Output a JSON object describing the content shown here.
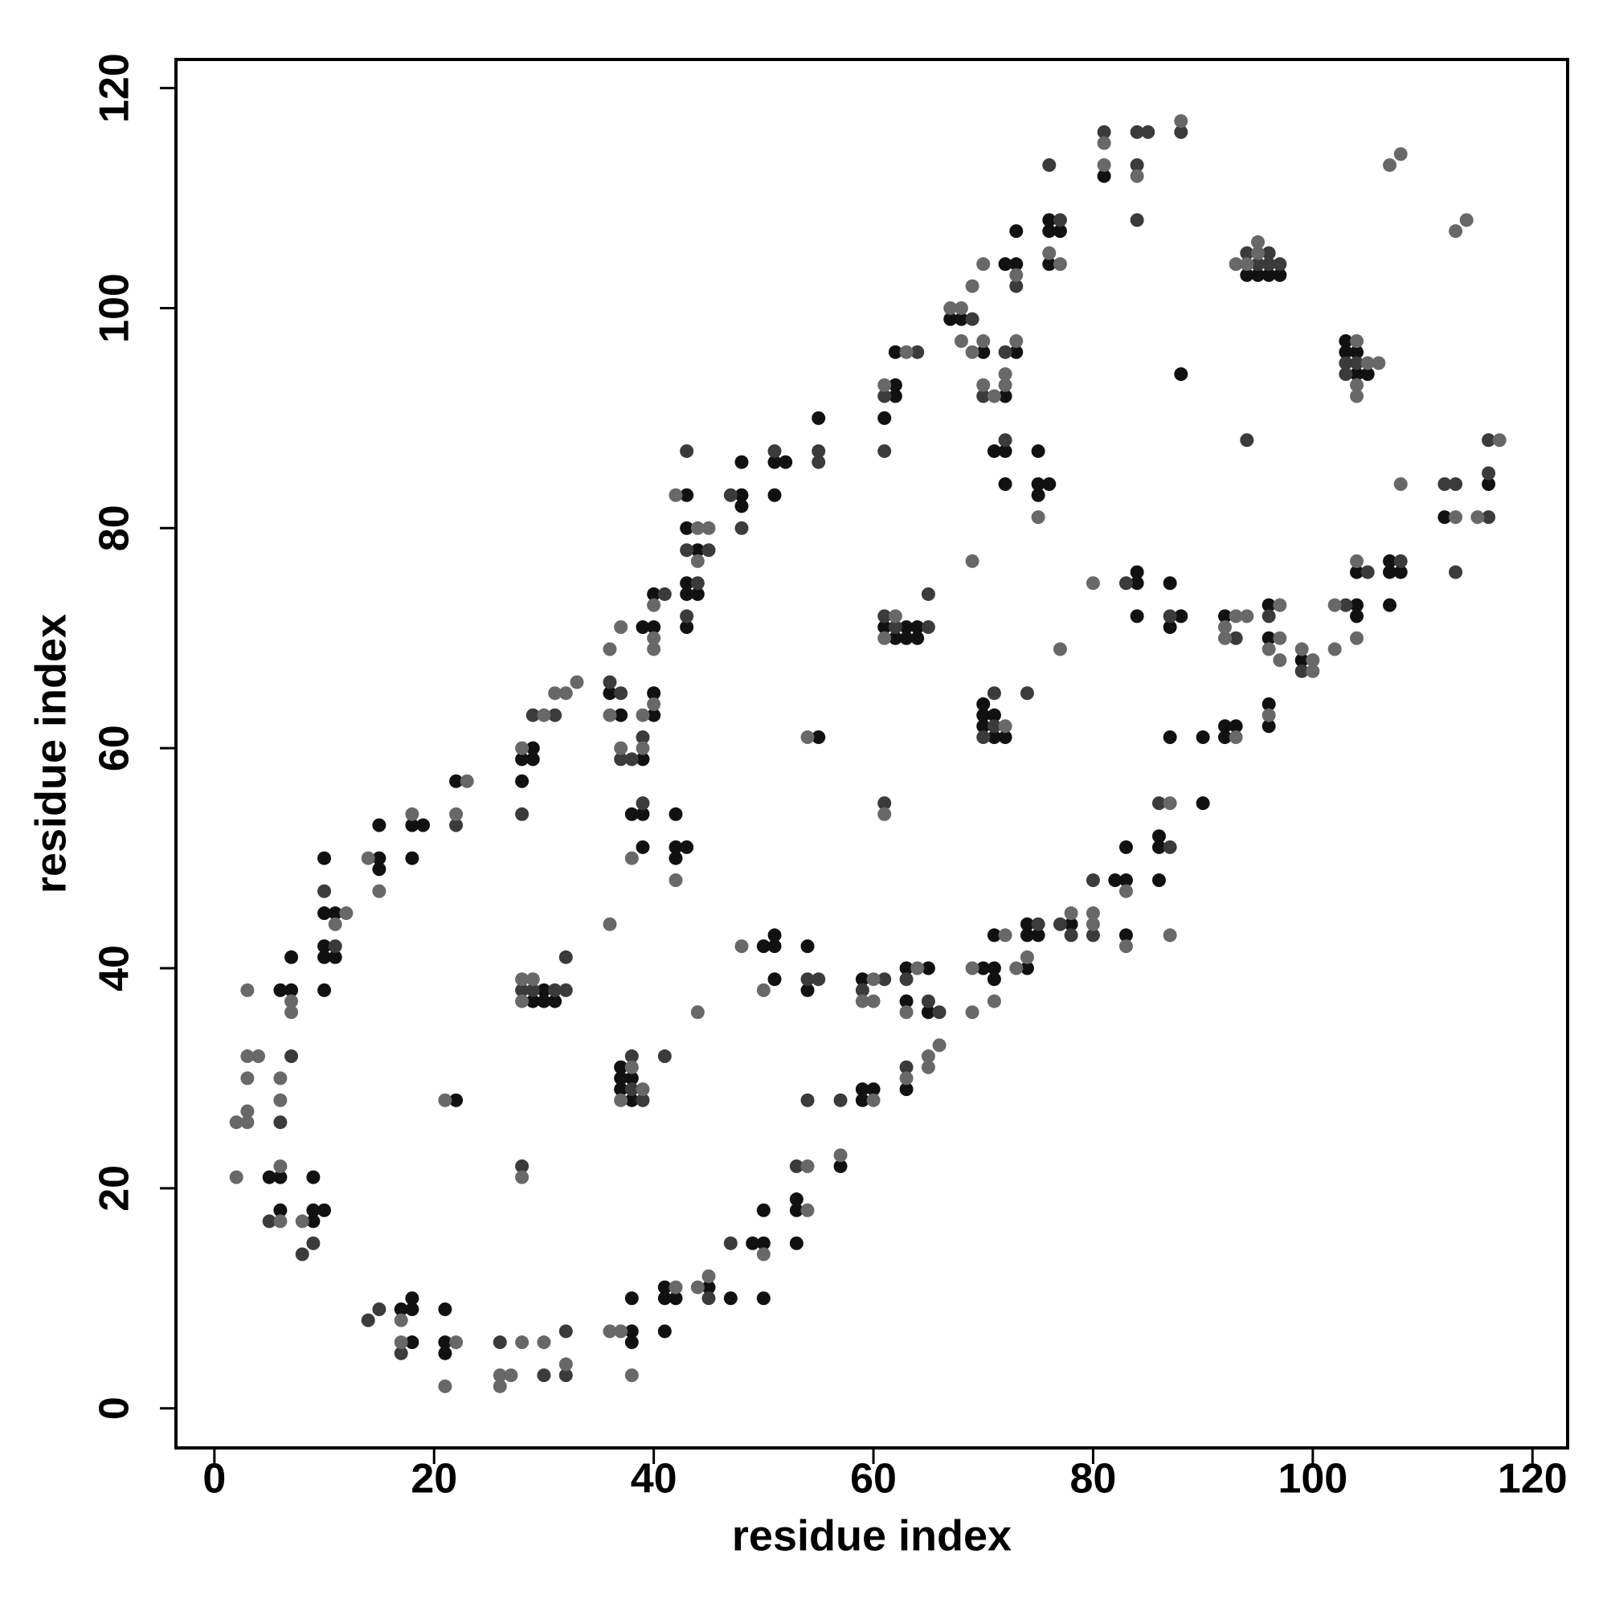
{
  "chart_data": {
    "type": "scatter",
    "xlabel": "residue index",
    "ylabel": "residue index",
    "xlim": [
      -3.5,
      123.2
    ],
    "ylim": [
      -3.6,
      122.6
    ],
    "xticks": [
      0,
      20,
      40,
      60,
      80,
      100,
      120
    ],
    "yticks": [
      0,
      20,
      40,
      60,
      80,
      100,
      120
    ],
    "series": [
      {
        "color": "#111111",
        "x": [
          5,
          6,
          6,
          6,
          7,
          7,
          9,
          9,
          10,
          9,
          10,
          10,
          10,
          11,
          10,
          11,
          10,
          15,
          15,
          15,
          18,
          18,
          19,
          22,
          28,
          28,
          29,
          29,
          36,
          37,
          39,
          40,
          40,
          38,
          39,
          39,
          39,
          40,
          40,
          42,
          42,
          43,
          42,
          43,
          43,
          44,
          43,
          43,
          44,
          43,
          48,
          48,
          48,
          51,
          52,
          51,
          55,
          61,
          62,
          62,
          62,
          67,
          68,
          70,
          72,
          73,
          72,
          73,
          73,
          76,
          76,
          76,
          77,
          81,
          94,
          95,
          96,
          97,
          103,
          103,
          104,
          104,
          105,
          88,
          71,
          72,
          72,
          75,
          75,
          76,
          75,
          61,
          62,
          63,
          63,
          64,
          64,
          70,
          70,
          70,
          71,
          71,
          72,
          55,
          22,
          29,
          30,
          30,
          31,
          37,
          37,
          37,
          38,
          38,
          50,
          51,
          51,
          51,
          54,
          54,
          59,
          63,
          63,
          65,
          65,
          70,
          71,
          71,
          71,
          74,
          74,
          74,
          75,
          78,
          82,
          83,
          83,
          83,
          86,
          86,
          86,
          87,
          90,
          90,
          92,
          92,
          93,
          84,
          84,
          84,
          87,
          87,
          88,
          92,
          96,
          96,
          96,
          96,
          99,
          104,
          104,
          104,
          107,
          107,
          108,
          107,
          112,
          116,
          17,
          18,
          18,
          18,
          21,
          21,
          21,
          38,
          38,
          38,
          41,
          41,
          41,
          42,
          45,
          47,
          49,
          50,
          50,
          50,
          53,
          53,
          53,
          57,
          59,
          59,
          60,
          63
        ],
        "y": [
          21,
          21,
          18,
          38,
          38,
          41,
          17,
          18,
          18,
          21,
          38,
          41,
          42,
          41,
          45,
          45,
          50,
          50,
          49,
          53,
          50,
          53,
          53,
          57,
          57,
          59,
          59,
          60,
          65,
          63,
          59,
          63,
          65,
          54,
          54,
          51,
          71,
          71,
          74,
          54,
          51,
          51,
          50,
          83,
          80,
          78,
          75,
          74,
          74,
          71,
          83,
          82,
          86,
          86,
          86,
          83,
          90,
          90,
          93,
          92,
          96,
          99,
          99,
          96,
          92,
          96,
          104,
          104,
          107,
          104,
          107,
          108,
          107,
          112,
          103,
          103,
          103,
          103,
          97,
          96,
          96,
          94,
          94,
          94,
          87,
          87,
          84,
          87,
          84,
          84,
          83,
          71,
          70,
          71,
          70,
          71,
          70,
          64,
          63,
          62,
          63,
          61,
          61,
          61,
          28,
          37,
          38,
          37,
          37,
          31,
          30,
          29,
          30,
          28,
          42,
          43,
          42,
          39,
          42,
          38,
          39,
          40,
          37,
          40,
          36,
          40,
          40,
          39,
          43,
          40,
          44,
          43,
          43,
          44,
          48,
          48,
          43,
          51,
          52,
          51,
          48,
          61,
          61,
          55,
          62,
          61,
          62,
          76,
          75,
          72,
          75,
          71,
          72,
          72,
          73,
          70,
          64,
          62,
          68,
          73,
          72,
          76,
          77,
          76,
          76,
          73,
          81,
          84,
          9,
          10,
          9,
          6,
          9,
          6,
          5,
          10,
          7,
          6,
          11,
          10,
          7,
          10,
          11,
          10,
          15,
          15,
          18,
          10,
          19,
          18,
          15,
          22,
          29,
          28,
          29,
          29
        ]
      },
      {
        "color": "#3b3b3b",
        "x": [
          5,
          6,
          7,
          8,
          9,
          11,
          10,
          22,
          28,
          29,
          31,
          36,
          37,
          37,
          38,
          39,
          39,
          41,
          43,
          43,
          44,
          43,
          45,
          47,
          48,
          51,
          55,
          55,
          61,
          61,
          64,
          69,
          70,
          72,
          73,
          77,
          76,
          81,
          84,
          85,
          84,
          84,
          88,
          94,
          95,
          96,
          97,
          96,
          103,
          103,
          104,
          94,
          72,
          74,
          61,
          62,
          65,
          65,
          70,
          71,
          71,
          61,
          28,
          28,
          29,
          31,
          32,
          32,
          38,
          38,
          39,
          41,
          54,
          55,
          59,
          61,
          63,
          65,
          66,
          75,
          77,
          78,
          80,
          80,
          86,
          87,
          83,
          87,
          93,
          96,
          99,
          103,
          105,
          108,
          112,
          113,
          113,
          116,
          116,
          116,
          14,
          15,
          17,
          26,
          30,
          32,
          32,
          45,
          47,
          53,
          54,
          57,
          63
        ],
        "y": [
          17,
          26,
          32,
          14,
          15,
          42,
          47,
          53,
          54,
          63,
          63,
          66,
          65,
          59,
          59,
          61,
          55,
          74,
          87,
          78,
          75,
          72,
          78,
          83,
          80,
          87,
          87,
          86,
          92,
          87,
          96,
          99,
          92,
          96,
          102,
          108,
          113,
          116,
          116,
          116,
          113,
          108,
          116,
          105,
          104,
          104,
          104,
          105,
          95,
          94,
          95,
          88,
          88,
          65,
          72,
          71,
          71,
          74,
          61,
          65,
          62,
          55,
          22,
          38,
          38,
          38,
          38,
          41,
          32,
          29,
          28,
          32,
          39,
          39,
          38,
          39,
          39,
          37,
          36,
          44,
          44,
          43,
          43,
          48,
          55,
          51,
          75,
          72,
          70,
          72,
          67,
          73,
          76,
          77,
          84,
          84,
          76,
          81,
          85,
          88,
          8,
          9,
          5,
          6,
          3,
          7,
          3,
          10,
          15,
          22,
          28,
          28,
          31
        ]
      },
      {
        "color": "#686868",
        "x": [
          2,
          3,
          3,
          2,
          3,
          3,
          4,
          3,
          6,
          6,
          6,
          6,
          7,
          7,
          8,
          11,
          12,
          14,
          15,
          18,
          23,
          22,
          28,
          30,
          31,
          32,
          33,
          36,
          36,
          37,
          37,
          39,
          39,
          40,
          38,
          40,
          40,
          40,
          42,
          42,
          44,
          44,
          45,
          61,
          63,
          67,
          68,
          69,
          70,
          68,
          69,
          70,
          70,
          71,
          72,
          72,
          73,
          73,
          76,
          77,
          81,
          81,
          84,
          88,
          107,
          108,
          113,
          114,
          93,
          94,
          95,
          95,
          104,
          104,
          105,
          106,
          104,
          75,
          69,
          77,
          61,
          62,
          72,
          54,
          61,
          28,
          21,
          28,
          28,
          29,
          36,
          37,
          38,
          39,
          44,
          48,
          50,
          59,
          60,
          60,
          63,
          64,
          69,
          69,
          71,
          72,
          73,
          74,
          78,
          80,
          80,
          83,
          83,
          87,
          87,
          93,
          80,
          92,
          92,
          93,
          94,
          97,
          96,
          97,
          97,
          96,
          99,
          100,
          100,
          102,
          102,
          104,
          104,
          108,
          113,
          115,
          117,
          17,
          17,
          22,
          21,
          26,
          26,
          27,
          28,
          30,
          32,
          36,
          37,
          38,
          42,
          44,
          45,
          50,
          54,
          54,
          57,
          60,
          63,
          65,
          65,
          66
        ],
        "y": [
          26,
          26,
          27,
          21,
          30,
          32,
          32,
          38,
          17,
          22,
          28,
          30,
          36,
          37,
          17,
          44,
          45,
          50,
          47,
          54,
          57,
          54,
          60,
          63,
          65,
          65,
          66,
          69,
          63,
          71,
          60,
          60,
          63,
          64,
          50,
          70,
          69,
          73,
          48,
          83,
          77,
          80,
          80,
          93,
          96,
          100,
          100,
          102,
          104,
          97,
          96,
          97,
          93,
          92,
          93,
          94,
          97,
          103,
          105,
          104,
          113,
          115,
          112,
          117,
          113,
          114,
          107,
          108,
          104,
          104,
          105,
          106,
          97,
          92,
          95,
          95,
          93,
          81,
          77,
          69,
          70,
          72,
          62,
          61,
          54,
          21,
          28,
          39,
          37,
          39,
          44,
          28,
          31,
          29,
          36,
          42,
          38,
          37,
          39,
          37,
          36,
          40,
          40,
          36,
          37,
          43,
          40,
          41,
          45,
          45,
          44,
          47,
          42,
          55,
          43,
          61,
          75,
          71,
          70,
          72,
          72,
          73,
          69,
          70,
          68,
          63,
          69,
          68,
          67,
          69,
          73,
          70,
          77,
          84,
          81,
          81,
          88,
          8,
          6,
          6,
          2,
          3,
          2,
          3,
          6,
          6,
          4,
          7,
          7,
          3,
          11,
          11,
          12,
          14,
          22,
          18,
          23,
          28,
          30,
          31,
          32,
          33
        ]
      }
    ]
  }
}
